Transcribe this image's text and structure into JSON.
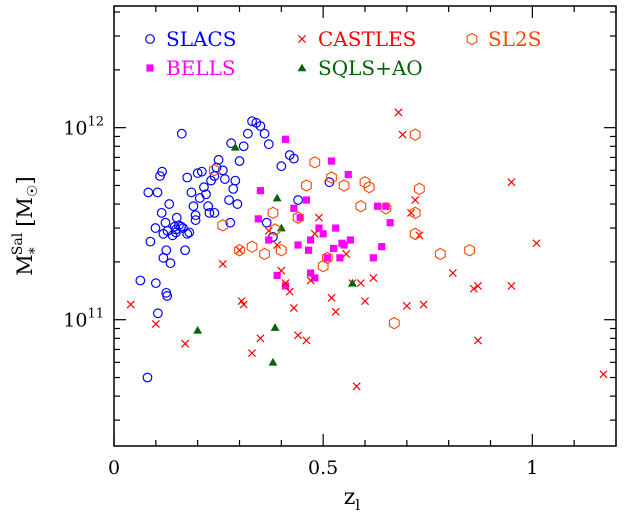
{
  "chart_data": {
    "type": "scatter",
    "x_axis": {
      "range": [
        0,
        1.2
      ],
      "ticks": [
        {
          "value": 0,
          "label": "0"
        },
        {
          "value": 0.5,
          "label": "0.5"
        },
        {
          "value": 1,
          "label": "1"
        }
      ],
      "label_base": "z",
      "label_sub": "l"
    },
    "y_axis": {
      "scale": "log",
      "range": [
        22000000000.0,
        4300000000000.0
      ],
      "ticks": [
        {
          "value": 100000000000.0,
          "mantissa": "10",
          "exponent": "11"
        },
        {
          "value": 1000000000000.0,
          "mantissa": "10",
          "exponent": "12"
        }
      ],
      "label_base": "M",
      "label_sub": "*",
      "label_sup": "Sal",
      "label_unit": "[M",
      "label_unit_sub": "☉",
      "label_unit_close": "]"
    },
    "grid": false,
    "legend_position": "top",
    "series": [
      {
        "name": "SLACS",
        "marker": "circle-open",
        "color": "#0000ff",
        "points": [
          [
            0.08,
            50000000000.0
          ],
          [
            0.063,
            160000000000.0
          ],
          [
            0.1,
            155000000000.0
          ],
          [
            0.105,
            108000000000.0
          ],
          [
            0.082,
            460000000000.0
          ],
          [
            0.087,
            255000000000.0
          ],
          [
            0.099,
            300000000000.0
          ],
          [
            0.104,
            460000000000.0
          ],
          [
            0.11,
            560000000000.0
          ],
          [
            0.115,
            590000000000.0
          ],
          [
            0.114,
            360000000000.0
          ],
          [
            0.118,
            280000000000.0
          ],
          [
            0.118,
            210000000000.0
          ],
          [
            0.125,
            138000000000.0
          ],
          [
            0.127,
            133000000000.0
          ],
          [
            0.123,
            320000000000.0
          ],
          [
            0.128,
            290000000000.0
          ],
          [
            0.132,
            400000000000.0
          ],
          [
            0.135,
            197000000000.0
          ],
          [
            0.14,
            275000000000.0
          ],
          [
            0.145,
            305000000000.0
          ],
          [
            0.15,
            340000000000.0
          ],
          [
            0.148,
            295000000000.0
          ],
          [
            0.155,
            310000000000.0
          ],
          [
            0.16,
            305000000000.0
          ],
          [
            0.165,
            300000000000.0
          ],
          [
            0.17,
            230000000000.0
          ],
          [
            0.175,
            280000000000.0
          ],
          [
            0.18,
            285000000000.0
          ],
          [
            0.185,
            460000000000.0
          ],
          [
            0.19,
            390000000000.0
          ],
          [
            0.195,
            330000000000.0
          ],
          [
            0.2,
            580000000000.0
          ],
          [
            0.205,
            430000000000.0
          ],
          [
            0.21,
            590000000000.0
          ],
          [
            0.215,
            490000000000.0
          ],
          [
            0.22,
            450000000000.0
          ],
          [
            0.225,
            390000000000.0
          ],
          [
            0.228,
            360000000000.0
          ],
          [
            0.232,
            530000000000.0
          ],
          [
            0.24,
            560000000000.0
          ],
          [
            0.245,
            620000000000.0
          ],
          [
            0.25,
            680000000000.0
          ],
          [
            0.26,
            600000000000.0
          ],
          [
            0.265,
            540000000000.0
          ],
          [
            0.275,
            420000000000.0
          ],
          [
            0.278,
            320000000000.0
          ],
          [
            0.28,
            830000000000.0
          ],
          [
            0.285,
            480000000000.0
          ],
          [
            0.29,
            530000000000.0
          ],
          [
            0.295,
            400000000000.0
          ],
          [
            0.3,
            670000000000.0
          ],
          [
            0.31,
            800000000000.0
          ],
          [
            0.32,
            930000000000.0
          ],
          [
            0.33,
            1080000000000.0
          ],
          [
            0.34,
            1060000000000.0
          ],
          [
            0.35,
            1020000000000.0
          ],
          [
            0.36,
            930000000000.0
          ],
          [
            0.37,
            820000000000.0
          ],
          [
            0.42,
            720000000000.0
          ],
          [
            0.43,
            690000000000.0
          ],
          [
            0.44,
            420000000000.0
          ],
          [
            0.515,
            520000000000.0
          ],
          [
            0.125,
            230000000000.0
          ],
          [
            0.148,
            285000000000.0
          ],
          [
            0.162,
            930000000000.0
          ],
          [
            0.175,
            550000000000.0
          ],
          [
            0.195,
            350000000000.0
          ],
          [
            0.24,
            360000000000.0
          ],
          [
            0.365,
            320000000000.0
          ],
          [
            0.38,
            270000000000.0
          ],
          [
            0.4,
            630000000000.0
          ]
        ]
      },
      {
        "name": "BELLS",
        "marker": "square-filled",
        "color": "#ff00ff",
        "points": [
          [
            0.345,
            335000000000.0
          ],
          [
            0.37,
            260000000000.0
          ],
          [
            0.39,
            170000000000.0
          ],
          [
            0.41,
            870000000000.0
          ],
          [
            0.43,
            380000000000.0
          ],
          [
            0.44,
            245000000000.0
          ],
          [
            0.445,
            340000000000.0
          ],
          [
            0.46,
            420000000000.0
          ],
          [
            0.465,
            230000000000.0
          ],
          [
            0.47,
            175000000000.0
          ],
          [
            0.48,
            165000000000.0
          ],
          [
            0.49,
            300000000000.0
          ],
          [
            0.5,
            280000000000.0
          ],
          [
            0.51,
            210000000000.0
          ],
          [
            0.52,
            670000000000.0
          ],
          [
            0.525,
            235000000000.0
          ],
          [
            0.53,
            300000000000.0
          ],
          [
            0.54,
            210000000000.0
          ],
          [
            0.545,
            250000000000.0
          ],
          [
            0.55,
            245000000000.0
          ],
          [
            0.56,
            570000000000.0
          ],
          [
            0.565,
            260000000000.0
          ],
          [
            0.63,
            390000000000.0
          ],
          [
            0.64,
            240000000000.0
          ],
          [
            0.65,
            390000000000.0
          ],
          [
            0.66,
            320000000000.0
          ],
          [
            0.62,
            210000000000.0
          ],
          [
            0.41,
            150000000000.0
          ],
          [
            0.35,
            470000000000.0
          ],
          [
            0.47,
            260000000000.0
          ]
        ]
      },
      {
        "name": "CASTLES",
        "marker": "cross",
        "color": "#ff0000",
        "points": [
          [
            0.04,
            120000000000.0
          ],
          [
            0.1,
            95000000000.0
          ],
          [
            0.17,
            75000000000.0
          ],
          [
            0.26,
            195000000000.0
          ],
          [
            0.3,
            230000000000.0
          ],
          [
            0.305,
            125000000000.0
          ],
          [
            0.31,
            120000000000.0
          ],
          [
            0.33,
            67000000000.0
          ],
          [
            0.35,
            80000000000.0
          ],
          [
            0.37,
            290000000000.0
          ],
          [
            0.39,
            245000000000.0
          ],
          [
            0.4,
            180000000000.0
          ],
          [
            0.41,
            155000000000.0
          ],
          [
            0.42,
            140000000000.0
          ],
          [
            0.43,
            115000000000.0
          ],
          [
            0.44,
            83000000000.0
          ],
          [
            0.46,
            78000000000.0
          ],
          [
            0.47,
            160000000000.0
          ],
          [
            0.48,
            280000000000.0
          ],
          [
            0.49,
            340000000000.0
          ],
          [
            0.52,
            130000000000.0
          ],
          [
            0.53,
            110000000000.0
          ],
          [
            0.555,
            220000000000.0
          ],
          [
            0.57,
            155000000000.0
          ],
          [
            0.58,
            45000000000.0
          ],
          [
            0.59,
            155000000000.0
          ],
          [
            0.6,
            125000000000.0
          ],
          [
            0.62,
            165000000000.0
          ],
          [
            0.68,
            1200000000000.0
          ],
          [
            0.69,
            920000000000.0
          ],
          [
            0.7,
            118000000000.0
          ],
          [
            0.71,
            360000000000.0
          ],
          [
            0.72,
            420000000000.0
          ],
          [
            0.73,
            275000000000.0
          ],
          [
            0.74,
            120000000000.0
          ],
          [
            0.81,
            175000000000.0
          ],
          [
            0.86,
            145000000000.0
          ],
          [
            0.87,
            150000000000.0
          ],
          [
            0.87,
            78000000000.0
          ],
          [
            0.95,
            520000000000.0
          ],
          [
            0.95,
            150000000000.0
          ],
          [
            1.01,
            250000000000.0
          ],
          [
            1.17,
            52000000000.0
          ]
        ]
      },
      {
        "name": "SQLS+AO",
        "marker": "triangle-filled",
        "color": "#006400",
        "points": [
          [
            0.2,
            88000000000.0
          ],
          [
            0.29,
            790000000000.0
          ],
          [
            0.38,
            60000000000.0
          ],
          [
            0.385,
            91000000000.0
          ],
          [
            0.39,
            430000000000.0
          ],
          [
            0.4,
            300000000000.0
          ],
          [
            0.57,
            155000000000.0
          ]
        ]
      },
      {
        "name": "SL2S",
        "marker": "hexagon-open",
        "color": "#ff4500",
        "points": [
          [
            0.24,
            600000000000.0
          ],
          [
            0.26,
            310000000000.0
          ],
          [
            0.3,
            230000000000.0
          ],
          [
            0.33,
            240000000000.0
          ],
          [
            0.36,
            220000000000.0
          ],
          [
            0.38,
            360000000000.0
          ],
          [
            0.385,
            295000000000.0
          ],
          [
            0.4,
            230000000000.0
          ],
          [
            0.44,
            340000000000.0
          ],
          [
            0.46,
            500000000000.0
          ],
          [
            0.48,
            660000000000.0
          ],
          [
            0.5,
            190000000000.0
          ],
          [
            0.51,
            210000000000.0
          ],
          [
            0.52,
            550000000000.0
          ],
          [
            0.55,
            500000000000.0
          ],
          [
            0.59,
            390000000000.0
          ],
          [
            0.6,
            520000000000.0
          ],
          [
            0.61,
            490000000000.0
          ],
          [
            0.65,
            380000000000.0
          ],
          [
            0.67,
            96000000000.0
          ],
          [
            0.72,
            360000000000.0
          ],
          [
            0.72,
            920000000000.0
          ],
          [
            0.72,
            280000000000.0
          ],
          [
            0.73,
            480000000000.0
          ],
          [
            0.78,
            220000000000.0
          ],
          [
            0.85,
            230000000000.0
          ]
        ]
      }
    ]
  }
}
